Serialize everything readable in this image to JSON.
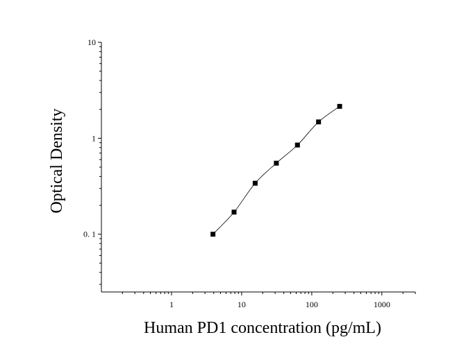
{
  "chart_data": {
    "type": "scatter",
    "title": "",
    "xlabel": "Human PD1 concentration (pg/mL)",
    "ylabel": "Optical Density",
    "x_scale": "log",
    "y_scale": "log",
    "xlim": [
      0.1,
      3000
    ],
    "ylim": [
      0.025,
      10
    ],
    "x_ticks": [
      {
        "value": 1,
        "label": "1"
      },
      {
        "value": 10,
        "label": "10"
      },
      {
        "value": 100,
        "label": "100"
      },
      {
        "value": 1000,
        "label": "1000"
      }
    ],
    "y_ticks": [
      {
        "value": 0.1,
        "label": "0. 1"
      },
      {
        "value": 1,
        "label": "1"
      },
      {
        "value": 10,
        "label": "10"
      }
    ],
    "grid": false,
    "legend": "none",
    "marker": "square",
    "series": [
      {
        "points": [
          {
            "x": 3.9,
            "y": 0.1
          },
          {
            "x": 7.8,
            "y": 0.17
          },
          {
            "x": 15.6,
            "y": 0.34
          },
          {
            "x": 31.25,
            "y": 0.55
          },
          {
            "x": 62.5,
            "y": 0.85
          },
          {
            "x": 125,
            "y": 1.48
          },
          {
            "x": 250,
            "y": 2.15
          }
        ]
      }
    ],
    "fit_curve": true,
    "colors": {
      "marker": "#000000",
      "line": "#000000",
      "axis": "#000000"
    }
  }
}
